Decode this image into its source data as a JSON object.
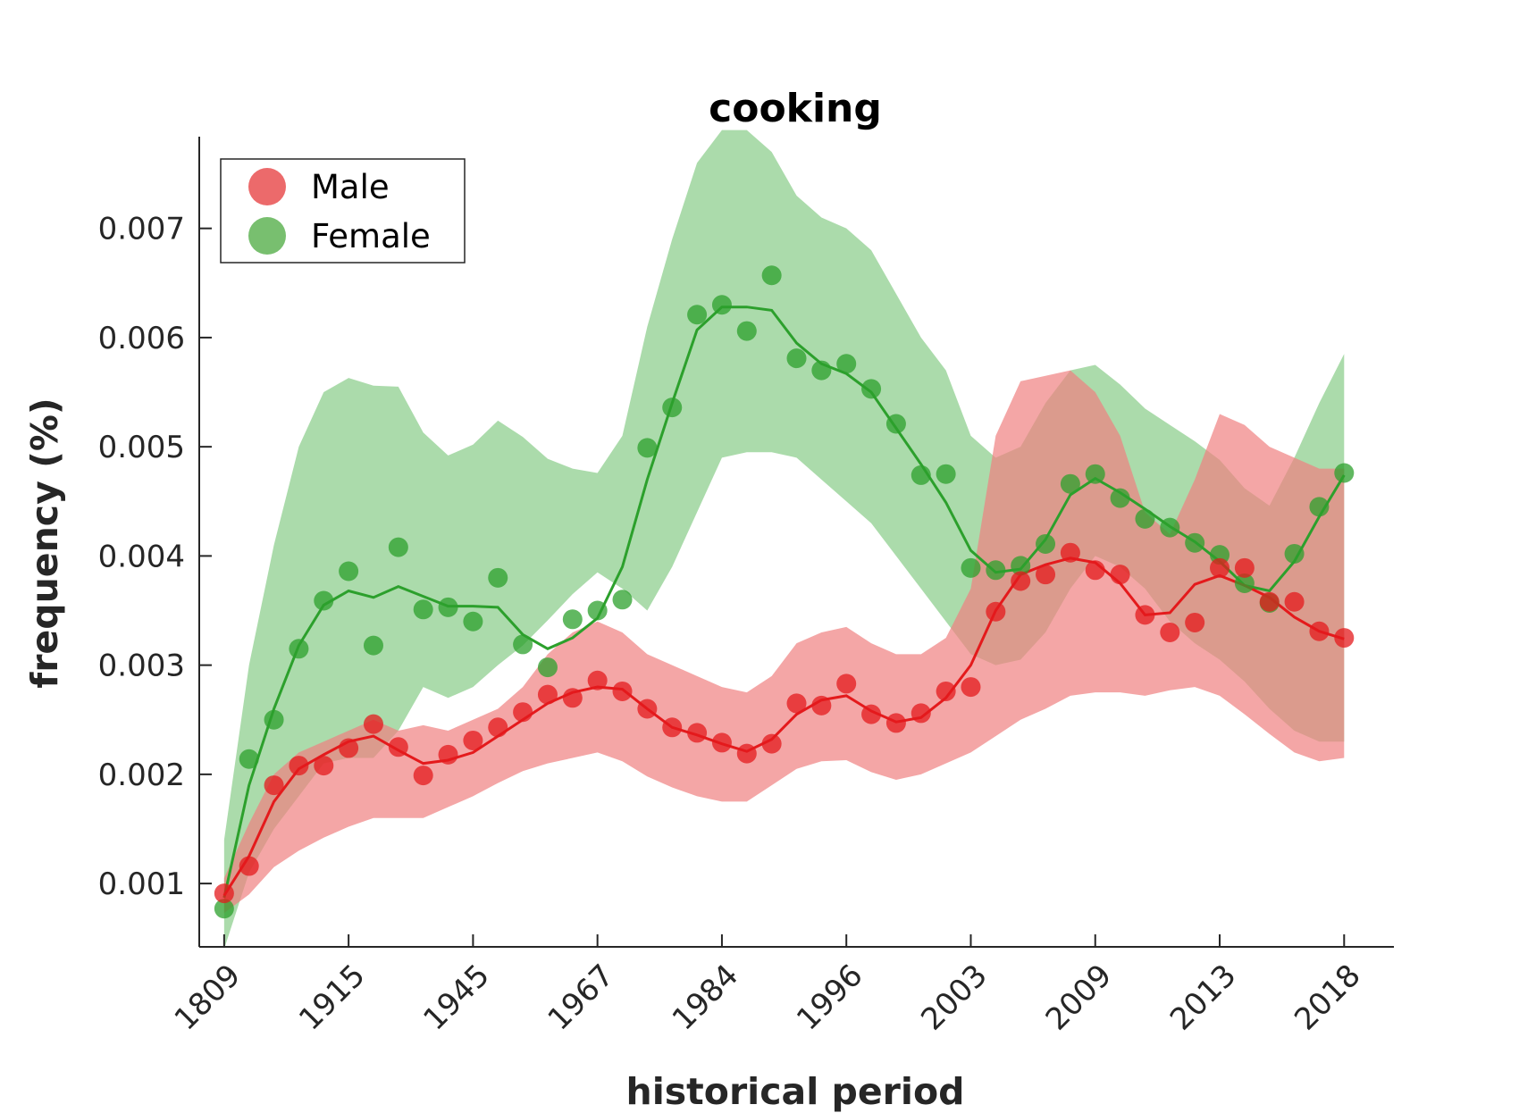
{
  "chart_data": {
    "type": "scatter",
    "title": "cooking",
    "xlabel": "historical period",
    "ylabel": "frequency (%)",
    "x_tick_labels": [
      "1809",
      "1915",
      "1945",
      "1967",
      "1984",
      "1996",
      "2003",
      "2009",
      "2013",
      "2018"
    ],
    "x_tick_positions": [
      1,
      6,
      11,
      16,
      21,
      26,
      31,
      36,
      41,
      46
    ],
    "xlim": [
      0,
      48
    ],
    "ylim": [
      0.00042,
      0.00784
    ],
    "y_ticks": [
      0.001,
      0.002,
      0.003,
      0.004,
      0.005,
      0.006,
      0.007
    ],
    "y_tick_labels": [
      "0.001",
      "0.002",
      "0.003",
      "0.004",
      "0.005",
      "0.006",
      "0.007"
    ],
    "grid": false,
    "legend": {
      "position": "top-left",
      "entries": [
        "Male",
        "Female"
      ]
    },
    "series": [
      {
        "name": "Male",
        "color": "#e41a1c",
        "band_color": "#f08080",
        "x": [
          1,
          2,
          3,
          4,
          5,
          6,
          7,
          8,
          9,
          10,
          11,
          12,
          13,
          14,
          15,
          16,
          17,
          18,
          19,
          20,
          21,
          22,
          23,
          24,
          25,
          26,
          27,
          28,
          29,
          30,
          31,
          32,
          33,
          34,
          35,
          36,
          37,
          38,
          39,
          40,
          41,
          42,
          43,
          44,
          45,
          46
        ],
        "points": [
          0.00091,
          0.00116,
          0.0019,
          0.00208,
          0.00208,
          0.00224,
          0.00246,
          0.00225,
          0.00199,
          0.00218,
          0.00231,
          0.00243,
          0.00257,
          0.00273,
          0.0027,
          0.00286,
          0.00276,
          0.0026,
          0.00243,
          0.00238,
          0.00229,
          0.00219,
          0.00228,
          0.00265,
          0.00263,
          0.00283,
          0.00255,
          0.00247,
          0.00256,
          0.00276,
          0.0028,
          0.00349,
          0.00377,
          0.00383,
          0.00403,
          0.00387,
          0.00383,
          0.00346,
          0.0033,
          0.00339,
          0.00389,
          0.00389,
          0.00358,
          0.00358,
          0.00331,
          0.00325
        ],
        "trend": [
          0.00089,
          0.00125,
          0.00175,
          0.00205,
          0.00218,
          0.0023,
          0.00235,
          0.00222,
          0.0021,
          0.00213,
          0.0022,
          0.00235,
          0.0025,
          0.00265,
          0.00275,
          0.0028,
          0.00278,
          0.0026,
          0.00243,
          0.00236,
          0.00228,
          0.00221,
          0.00232,
          0.00255,
          0.00268,
          0.00272,
          0.00258,
          0.00248,
          0.00252,
          0.0027,
          0.003,
          0.0035,
          0.00383,
          0.00392,
          0.00398,
          0.00394,
          0.00375,
          0.00346,
          0.00348,
          0.00374,
          0.00382,
          0.00373,
          0.00362,
          0.00344,
          0.00331,
          0.00324
        ],
        "band_upper": [
          0.00105,
          0.00155,
          0.002,
          0.0022,
          0.0023,
          0.0024,
          0.0025,
          0.0024,
          0.00245,
          0.0024,
          0.0025,
          0.0026,
          0.0028,
          0.0031,
          0.0033,
          0.0034,
          0.0033,
          0.0031,
          0.003,
          0.0029,
          0.0028,
          0.00275,
          0.0029,
          0.0032,
          0.0033,
          0.00335,
          0.0032,
          0.0031,
          0.0031,
          0.00325,
          0.0037,
          0.0051,
          0.0056,
          0.00565,
          0.0057,
          0.0055,
          0.0051,
          0.0044,
          0.0042,
          0.0047,
          0.0053,
          0.0052,
          0.005,
          0.0049,
          0.0048,
          0.0048
        ],
        "band_lower": [
          0.00073,
          0.0009,
          0.00115,
          0.0013,
          0.00142,
          0.00152,
          0.0016,
          0.0016,
          0.0016,
          0.0017,
          0.0018,
          0.00192,
          0.00203,
          0.0021,
          0.00215,
          0.0022,
          0.00212,
          0.00198,
          0.00188,
          0.0018,
          0.00175,
          0.00175,
          0.0019,
          0.00205,
          0.00212,
          0.00213,
          0.00202,
          0.00195,
          0.002,
          0.0021,
          0.0022,
          0.00235,
          0.0025,
          0.0026,
          0.00272,
          0.00275,
          0.00275,
          0.00272,
          0.00277,
          0.0028,
          0.00272,
          0.00255,
          0.00237,
          0.0022,
          0.00212,
          0.00215
        ]
      },
      {
        "name": "Female",
        "color": "#2ca02c",
        "band_color": "#7ec87e",
        "x": [
          1,
          2,
          3,
          4,
          5,
          6,
          7,
          8,
          9,
          10,
          11,
          12,
          13,
          14,
          15,
          16,
          17,
          18,
          19,
          20,
          21,
          22,
          23,
          24,
          25,
          26,
          27,
          28,
          29,
          30,
          31,
          32,
          33,
          34,
          35,
          36,
          37,
          38,
          39,
          40,
          41,
          42,
          43,
          44,
          45,
          46
        ],
        "points": [
          0.00077,
          0.00214,
          0.0025,
          0.00315,
          0.00359,
          0.00386,
          0.00318,
          0.00408,
          0.00351,
          0.00353,
          0.0034,
          0.0038,
          0.00319,
          0.00298,
          0.00342,
          0.0035,
          0.0036,
          0.00499,
          0.00536,
          0.00621,
          0.0063,
          0.00606,
          0.00657,
          0.00581,
          0.0057,
          0.00576,
          0.00553,
          0.00521,
          0.00474,
          0.00475,
          0.00389,
          0.00387,
          0.00391,
          0.00411,
          0.00466,
          0.00475,
          0.00453,
          0.00434,
          0.00426,
          0.00412,
          0.00401,
          0.00375,
          0.00357,
          0.00402,
          0.00445,
          0.00476
        ],
        "trend": [
          0.00087,
          0.0019,
          0.0026,
          0.00318,
          0.00355,
          0.00368,
          0.00362,
          0.00372,
          0.00363,
          0.00354,
          0.00354,
          0.00353,
          0.00328,
          0.00315,
          0.00325,
          0.00343,
          0.0039,
          0.0047,
          0.0054,
          0.00607,
          0.00628,
          0.00628,
          0.00625,
          0.00595,
          0.00576,
          0.00567,
          0.0055,
          0.00517,
          0.00484,
          0.00449,
          0.00405,
          0.00385,
          0.00388,
          0.00415,
          0.00456,
          0.00471,
          0.00458,
          0.00443,
          0.00427,
          0.00413,
          0.00395,
          0.00373,
          0.00368,
          0.00395,
          0.00436,
          0.00474
        ],
        "band_upper": [
          0.0014,
          0.003,
          0.0041,
          0.005,
          0.0055,
          0.00563,
          0.00556,
          0.00555,
          0.00513,
          0.00492,
          0.00502,
          0.00524,
          0.00509,
          0.00489,
          0.0048,
          0.00476,
          0.0051,
          0.0061,
          0.0069,
          0.0076,
          0.0079,
          0.0079,
          0.0077,
          0.0073,
          0.0071,
          0.007,
          0.0068,
          0.0064,
          0.006,
          0.0057,
          0.0051,
          0.0049,
          0.005,
          0.0054,
          0.0057,
          0.00575,
          0.00557,
          0.00535,
          0.0052,
          0.00505,
          0.00488,
          0.00462,
          0.00446,
          0.0049,
          0.0054,
          0.00585
        ],
        "band_lower": [
          0.0004,
          0.0011,
          0.0015,
          0.0018,
          0.0021,
          0.00215,
          0.00215,
          0.0024,
          0.0028,
          0.0027,
          0.0028,
          0.003,
          0.00318,
          0.00341,
          0.00365,
          0.00385,
          0.0037,
          0.0035,
          0.0039,
          0.0044,
          0.0049,
          0.00495,
          0.00495,
          0.0049,
          0.0047,
          0.0045,
          0.0043,
          0.004,
          0.0037,
          0.0034,
          0.0031,
          0.003,
          0.00305,
          0.0033,
          0.0037,
          0.004,
          0.0039,
          0.0037,
          0.0034,
          0.0032,
          0.00305,
          0.00285,
          0.0026,
          0.0024,
          0.0023,
          0.0023
        ]
      }
    ]
  }
}
